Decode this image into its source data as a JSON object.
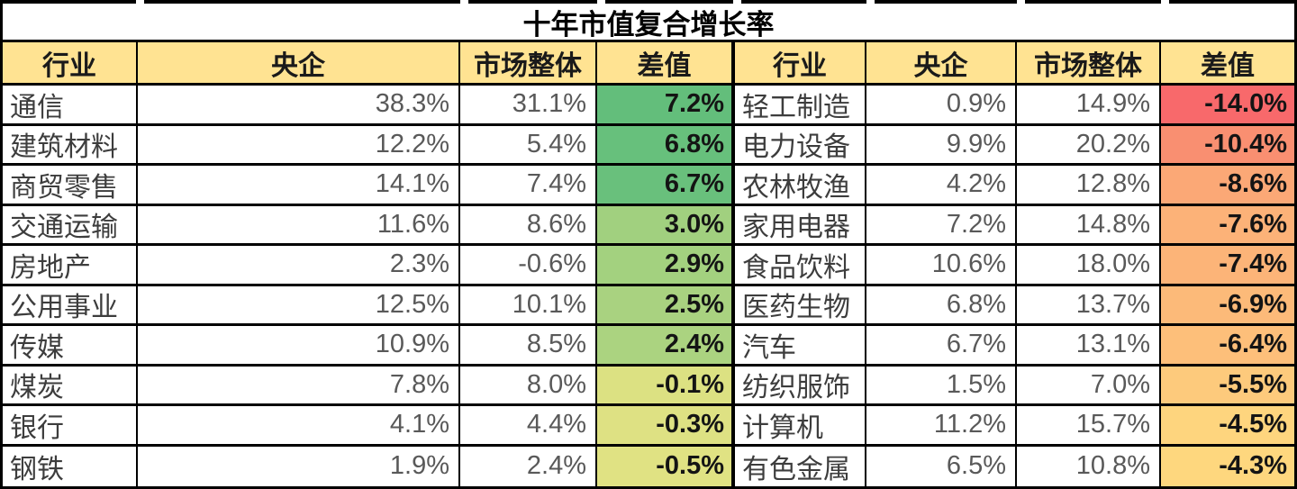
{
  "title": "十年市值复合增长率",
  "header": {
    "labels": [
      "行业",
      "央企",
      "市场整体",
      "差值"
    ]
  },
  "colors": {
    "header_bg": "#FFE392",
    "diff_scale_max_green": "#63BE7B",
    "diff_scale_mid_yellow": "#FFEB84",
    "diff_scale_min_red": "#F8696B",
    "border": "#000000",
    "number_text": "#595959",
    "industry_text": "#3d3d3d"
  },
  "left_table": {
    "rows": [
      {
        "industry": "通信",
        "central": "38.3%",
        "market": "31.1%",
        "diff": "7.2%",
        "diff_bg": "#63BE7B"
      },
      {
        "industry": "建筑材料",
        "central": "12.2%",
        "market": "5.4%",
        "diff": "6.8%",
        "diff_bg": "#67C07C"
      },
      {
        "industry": "商贸零售",
        "central": "14.1%",
        "market": "7.4%",
        "diff": "6.7%",
        "diff_bg": "#69C07C"
      },
      {
        "industry": "交通运输",
        "central": "11.6%",
        "market": "8.6%",
        "diff": "3.0%",
        "diff_bg": "#A1D07F"
      },
      {
        "industry": "房地产",
        "central": "2.3%",
        "market": "-0.6%",
        "diff": "2.9%",
        "diff_bg": "#A3D17F"
      },
      {
        "industry": "公用事业",
        "central": "12.5%",
        "market": "10.1%",
        "diff": "2.5%",
        "diff_bg": "#A9D280"
      },
      {
        "industry": "传媒",
        "central": "10.9%",
        "market": "8.5%",
        "diff": "2.4%",
        "diff_bg": "#ABD380"
      },
      {
        "industry": "煤炭",
        "central": "7.8%",
        "market": "8.0%",
        "diff": "-0.1%",
        "diff_bg": "#DCE182"
      },
      {
        "industry": "银行",
        "central": "4.1%",
        "market": "4.4%",
        "diff": "-0.3%",
        "diff_bg": "#DEE183"
      },
      {
        "industry": "钢铁",
        "central": "1.9%",
        "market": "2.4%",
        "diff": "-0.5%",
        "diff_bg": "#E0E283"
      }
    ]
  },
  "right_table": {
    "rows": [
      {
        "industry": "轻工制造",
        "central": "0.9%",
        "market": "14.9%",
        "diff": "-14.0%",
        "diff_bg": "#F8696B"
      },
      {
        "industry": "电力设备",
        "central": "9.9%",
        "market": "20.2%",
        "diff": "-10.4%",
        "diff_bg": "#F98F71"
      },
      {
        "industry": "农林牧渔",
        "central": "4.2%",
        "market": "12.8%",
        "diff": "-8.6%",
        "diff_bg": "#FBA876"
      },
      {
        "industry": "家用电器",
        "central": "7.2%",
        "market": "14.8%",
        "diff": "-7.6%",
        "diff_bg": "#FCB278"
      },
      {
        "industry": "食品饮料",
        "central": "10.6%",
        "market": "18.0%",
        "diff": "-7.4%",
        "diff_bg": "#FCB478"
      },
      {
        "industry": "医药生物",
        "central": "6.8%",
        "market": "13.7%",
        "diff": "-6.9%",
        "diff_bg": "#FCBA79"
      },
      {
        "industry": "汽车",
        "central": "6.7%",
        "market": "13.1%",
        "diff": "-6.4%",
        "diff_bg": "#FDBF7A"
      },
      {
        "industry": "纺织服饰",
        "central": "1.5%",
        "market": "7.0%",
        "diff": "-5.5%",
        "diff_bg": "#FDCA7C"
      },
      {
        "industry": "计算机",
        "central": "11.2%",
        "market": "15.7%",
        "diff": "-4.5%",
        "diff_bg": "#FED57E"
      },
      {
        "industry": "有色金属",
        "central": "6.5%",
        "market": "10.8%",
        "diff": "-4.3%",
        "diff_bg": "#FED77E"
      }
    ]
  },
  "chart_data": {
    "type": "table",
    "title": "十年市值复合增长率",
    "columns": [
      "行业",
      "央企",
      "市场整体",
      "差值"
    ],
    "left_rows": [
      [
        "通信",
        38.3,
        31.1,
        7.2
      ],
      [
        "建筑材料",
        12.2,
        5.4,
        6.8
      ],
      [
        "商贸零售",
        14.1,
        7.4,
        6.7
      ],
      [
        "交通运输",
        11.6,
        8.6,
        3.0
      ],
      [
        "房地产",
        2.3,
        -0.6,
        2.9
      ],
      [
        "公用事业",
        12.5,
        10.1,
        2.5
      ],
      [
        "传媒",
        10.9,
        8.5,
        2.4
      ],
      [
        "煤炭",
        7.8,
        8.0,
        -0.1
      ],
      [
        "银行",
        4.1,
        4.4,
        -0.3
      ],
      [
        "钢铁",
        1.9,
        2.4,
        -0.5
      ]
    ],
    "right_rows": [
      [
        "轻工制造",
        0.9,
        14.9,
        -14.0
      ],
      [
        "电力设备",
        9.9,
        20.2,
        -10.4
      ],
      [
        "农林牧渔",
        4.2,
        12.8,
        -8.6
      ],
      [
        "家用电器",
        7.2,
        14.8,
        -7.6
      ],
      [
        "食品饮料",
        10.6,
        18.0,
        -7.4
      ],
      [
        "医药生物",
        6.8,
        13.7,
        -6.9
      ],
      [
        "汽车",
        6.7,
        13.1,
        -6.4
      ],
      [
        "纺织服饰",
        1.5,
        7.0,
        -5.5
      ],
      [
        "计算机",
        11.2,
        15.7,
        -4.5
      ],
      [
        "有色金属",
        6.5,
        10.8,
        -4.3
      ]
    ],
    "units": "percent",
    "notes": "差值 column uses red-yellow-green color scale; values sorted descending (left) / ascending magnitude (right)"
  }
}
